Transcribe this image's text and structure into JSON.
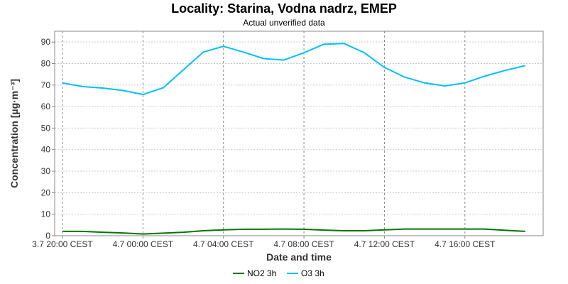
{
  "chart_data": {
    "type": "line",
    "title": "Locality: Starina, Vodna nadrz, EMEP",
    "subtitle": "Actual unverified data",
    "xlabel": "Date and time",
    "ylabel": "Concentration [µg·m⁻³]",
    "ylim": [
      0,
      95
    ],
    "yticks": [
      0,
      10,
      20,
      30,
      40,
      50,
      60,
      70,
      80,
      90
    ],
    "xlim": [
      0,
      23.5
    ],
    "xticks": [
      {
        "x": 0,
        "label": "3.7 20:00 CEST"
      },
      {
        "x": 4,
        "label": "4.7 00:00 CEST"
      },
      {
        "x": 8,
        "label": "4.7 04:00 CEST"
      },
      {
        "x": 12,
        "label": "4.7 08:00 CEST"
      },
      {
        "x": 16,
        "label": "4.7 12:00 CEST"
      },
      {
        "x": 20,
        "label": "4.7 16:00 CEST"
      }
    ],
    "grid": true,
    "legend_position": "bottom",
    "series": [
      {
        "name": "NO2 3h",
        "color": "#007700",
        "x": [
          0,
          1,
          2,
          3,
          4,
          5,
          6,
          7,
          8,
          9,
          10,
          11,
          12,
          13,
          14,
          15,
          16,
          17,
          18,
          19,
          20,
          21,
          22,
          23
        ],
        "values": [
          2.0,
          2.0,
          1.6,
          1.3,
          0.8,
          1.2,
          1.6,
          2.3,
          2.7,
          3.0,
          3.0,
          3.1,
          3.0,
          2.6,
          2.3,
          2.3,
          2.7,
          3.1,
          3.1,
          3.1,
          3.1,
          3.1,
          2.5,
          2.0
        ]
      },
      {
        "name": "O3 3h",
        "color": "#00bfff",
        "x": [
          0,
          1,
          2,
          3,
          4,
          5,
          6,
          7,
          8,
          9,
          10,
          11,
          12,
          13,
          14,
          15,
          16,
          17,
          18,
          19,
          20,
          21,
          22,
          23
        ],
        "values": [
          71.0,
          69.3,
          68.6,
          67.5,
          65.6,
          68.7,
          77.0,
          85.3,
          88.0,
          85.3,
          82.3,
          81.6,
          85.0,
          89.0,
          89.3,
          85.0,
          78.2,
          73.7,
          71.0,
          69.6,
          71.0,
          74.2,
          76.8,
          79.0
        ]
      }
    ]
  }
}
